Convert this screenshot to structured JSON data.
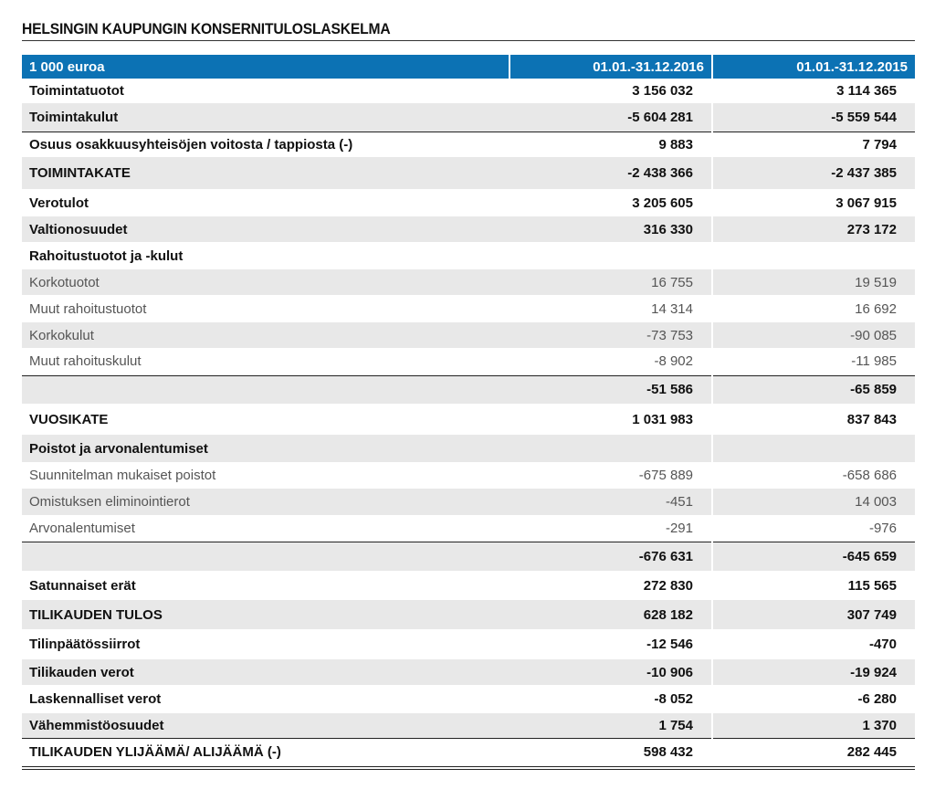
{
  "title": "HELSINGIN KAUPUNGIN KONSERNITULOSLASKELMA",
  "header": {
    "unit": "1 000 euroa",
    "col_2016": "01.01.-31.12.2016",
    "col_2015": "01.01.-31.12.2015"
  },
  "rows": [
    {
      "label": "Toimintatuotot",
      "v2016": "3 156 032",
      "v2015": "3 114 365"
    },
    {
      "label": "Toimintakulut",
      "v2016": "-5 604 281",
      "v2015": "-5 559 544"
    },
    {
      "label": "Osuus osakkuusyhteisöjen voitosta / tappiosta (-)",
      "v2016": "9 883",
      "v2015": "7 794"
    },
    {
      "label": "TOIMINTAKATE",
      "v2016": "-2 438 366",
      "v2015": "-2 437 385"
    },
    {
      "label": "Verotulot",
      "v2016": "3 205 605",
      "v2015": "3 067 915"
    },
    {
      "label": "Valtionosuudet",
      "v2016": "316 330",
      "v2015": "273 172"
    },
    {
      "label": "Rahoitustuotot ja -kulut",
      "v2016": "",
      "v2015": ""
    },
    {
      "label": "Korkotuotot",
      "v2016": "16 755",
      "v2015": "19 519"
    },
    {
      "label": "Muut rahoitustuotot",
      "v2016": "14 314",
      "v2015": "16 692"
    },
    {
      "label": "Korkokulut",
      "v2016": "-73 753",
      "v2015": "-90 085"
    },
    {
      "label": "Muut rahoituskulut",
      "v2016": "-8 902",
      "v2015": "-11 985"
    },
    {
      "label": "",
      "v2016": "-51 586",
      "v2015": "-65 859"
    },
    {
      "label": "VUOSIKATE",
      "v2016": "1 031 983",
      "v2015": "837 843"
    },
    {
      "label": "Poistot ja arvonalentumiset",
      "v2016": "",
      "v2015": ""
    },
    {
      "label": "Suunnitelman mukaiset poistot",
      "v2016": "-675 889",
      "v2015": "-658 686"
    },
    {
      "label": "Omistuksen eliminointierot",
      "v2016": "-451",
      "v2015": "14 003"
    },
    {
      "label": "Arvonalentumiset",
      "v2016": "-291",
      "v2015": "-976"
    },
    {
      "label": "",
      "v2016": "-676 631",
      "v2015": "-645 659"
    },
    {
      "label": "Satunnaiset erät",
      "v2016": "272 830",
      "v2015": "115 565"
    },
    {
      "label": "TILIKAUDEN TULOS",
      "v2016": "628 182",
      "v2015": "307 749"
    },
    {
      "label": "Tilinpäätössiirrot",
      "v2016": "-12 546",
      "v2015": "-470"
    },
    {
      "label": "Tilikauden verot",
      "v2016": "-10 906",
      "v2015": "-19 924"
    },
    {
      "label": "Laskennalliset verot",
      "v2016": "-8 052",
      "v2015": "-6 280"
    },
    {
      "label": "Vähemmistöosuudet",
      "v2016": "1 754",
      "v2015": "1 370"
    },
    {
      "label": "TILIKAUDEN YLIJÄÄMÄ/ ALIJÄÄMÄ (-)",
      "v2016": "598 432",
      "v2015": "282 445"
    }
  ]
}
